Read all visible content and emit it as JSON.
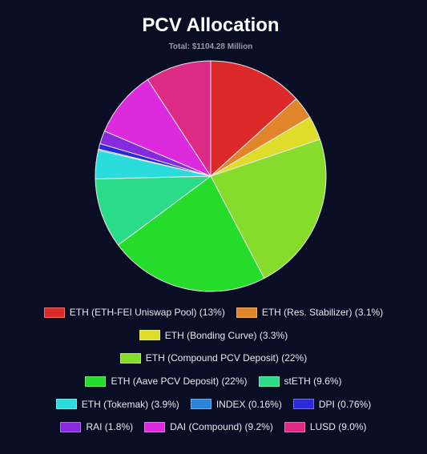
{
  "chart_data": {
    "type": "pie",
    "title": "PCV Allocation",
    "subtitle": "Total: $1104.28 Million",
    "categories": [
      "ETH (ETH-FEI Uniswap Pool) (13%)",
      "ETH (Res. Stabilizer) (3.1%)",
      "ETH (Bonding Curve) (3.3%)",
      "ETH (Compound PCV Deposit) (22%)",
      "ETH (Aave PCV Deposit) (22%)",
      "stETH (9.6%)",
      "ETH (Tokemak) (3.9%)",
      "INDEX (0.16%)",
      "DPI (0.76%)",
      "RAI (1.8%)",
      "DAI (Compound) (9.2%)",
      "LUSD (9.0%)"
    ],
    "values": [
      13,
      3.1,
      3.3,
      22,
      22,
      9.6,
      3.9,
      0.16,
      0.76,
      1.8,
      9.2,
      9.0
    ],
    "colors": [
      "#dc2a2a",
      "#e0852a",
      "#dedd2a",
      "#86dc2a",
      "#26dc2a",
      "#2adc88",
      "#2adcdc",
      "#2a85dc",
      "#2a2adc",
      "#852adc",
      "#dc2adc",
      "#dc2a85"
    ]
  }
}
